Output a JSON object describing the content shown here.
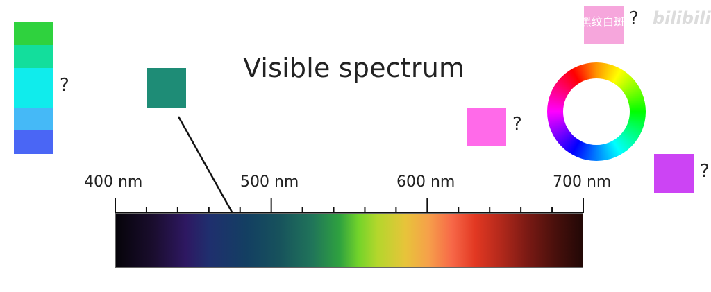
{
  "title": "Visible spectrum",
  "question_mark": "?",
  "ticks": {
    "labels": [
      "400 nm",
      "500 nm",
      "600 nm",
      "700 nm"
    ]
  },
  "stack_colors": [
    "#2fd23e",
    "#13de9c",
    "#10ecec",
    "#45b9f7",
    "#4a66f5"
  ],
  "swatches": {
    "teal": "#1e8c76",
    "pink_light": "#f6a6dc",
    "pink": "#ff6ae9",
    "purple": "#cc44f4"
  },
  "watermark": {
    "text": "黑纹白斑",
    "logo": "bilibili"
  },
  "icons": [
    "color-wheel-icon"
  ]
}
